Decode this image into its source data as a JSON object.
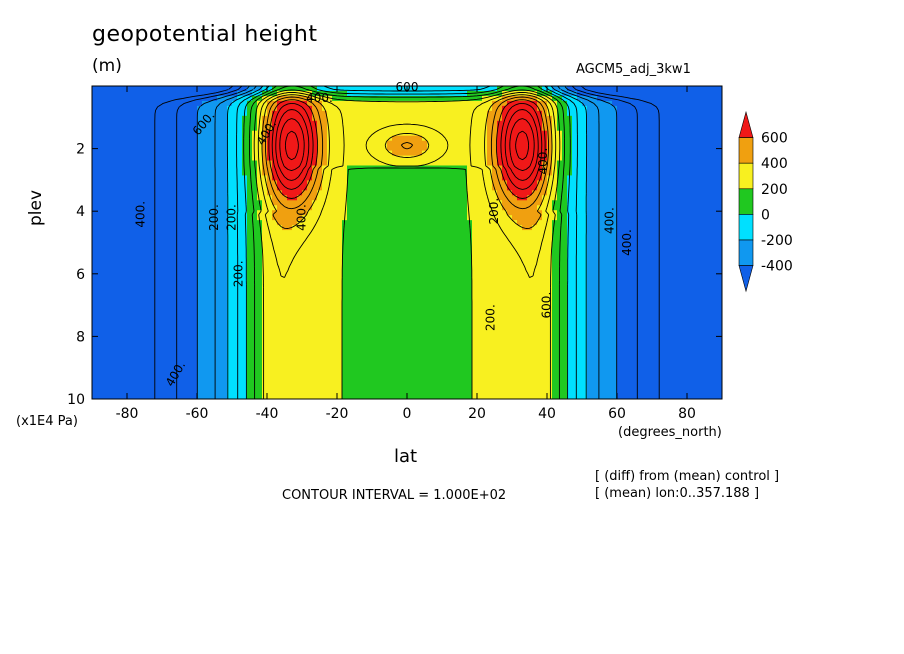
{
  "chart_data": {
    "type": "contour",
    "title": "geopotential height",
    "units": "(m)",
    "run_label": "AGCM5_adj_3kw1",
    "xlabel": "lat",
    "x_units": "(degrees_north)",
    "ylabel": "plev",
    "y_units": "(x1E4 Pa)",
    "xlim": [
      -90,
      90
    ],
    "ylim": [
      10,
      0
    ],
    "x_ticks": [
      "-80",
      "-60",
      "-40",
      "-20",
      "0",
      "20",
      "40",
      "60",
      "80"
    ],
    "y_ticks": [
      "2",
      "4",
      "6",
      "8",
      "10"
    ],
    "contour_interval": "CONTOUR INTERVAL = 1.000E+02",
    "info_lines": [
      "[ (diff) from (mean) control ]",
      "[ (mean) lon:0..357.188 ]"
    ],
    "colorbar": {
      "labels": [
        "600",
        "400",
        "200",
        "0",
        "-200",
        "-400"
      ],
      "colors": [
        "#f01818",
        "#f0a010",
        "#f8f020",
        "#20c820",
        "#00e0ff",
        "#1098f0",
        "#1060e8"
      ]
    },
    "contour_labels": [
      "400.",
      "400.",
      "200.",
      "200.",
      "400.",
      "600.",
      "400.",
      "400.",
      "200.",
      "400.",
      "600.",
      "400.",
      "600",
      "200.",
      "400.",
      "200."
    ],
    "maxima": [
      {
        "lat": -33,
        "plev": 1.8,
        "value_range": ">600"
      },
      {
        "lat": 33,
        "plev": 1.8,
        "value_range": ">600"
      }
    ],
    "minima": [
      {
        "lat": -73,
        "plev": 4,
        "value_range": "<-400"
      },
      {
        "lat": 70,
        "plev": 4,
        "value_range": "<-400"
      }
    ]
  }
}
